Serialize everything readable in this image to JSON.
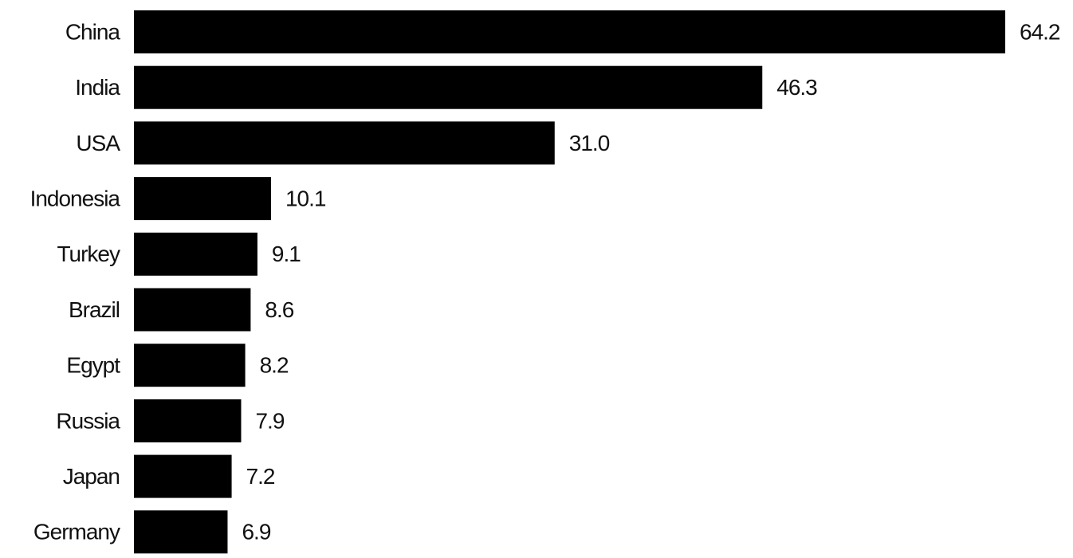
{
  "chart_data": {
    "type": "barh",
    "categories": [
      "China",
      "India",
      "USA",
      "Indonesia",
      "Turkey",
      "Brazil",
      "Egypt",
      "Russia",
      "Japan",
      "Germany"
    ],
    "values": [
      64.2,
      46.3,
      31.0,
      10.1,
      9.1,
      8.6,
      8.2,
      7.9,
      7.2,
      6.9
    ],
    "value_labels": [
      "64.2",
      "46.3",
      "31.0",
      "10.1",
      "9.1",
      "8.6",
      "8.2",
      "7.9",
      "7.2",
      "6.9"
    ],
    "color": "#000000"
  }
}
